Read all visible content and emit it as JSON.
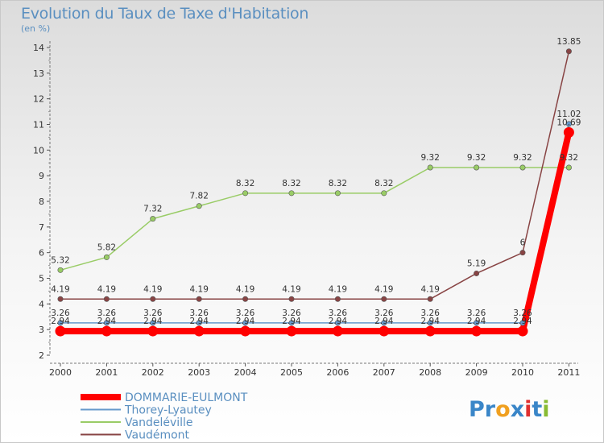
{
  "chart_data": {
    "type": "line",
    "title": "Evolution du Taux de Taxe d'Habitation",
    "unit_label": "(en %)",
    "x": [
      "2000",
      "2001",
      "2002",
      "2003",
      "2004",
      "2005",
      "2006",
      "2007",
      "2008",
      "2009",
      "2010",
      "2011"
    ],
    "ylim": [
      2,
      14
    ],
    "yticks": [
      "2",
      "3",
      "4",
      "5",
      "6",
      "7",
      "8",
      "9",
      "10",
      "11",
      "12",
      "13",
      "14"
    ],
    "series": [
      {
        "name": "DOMMARIE-EULMONT",
        "color": "#ff0000",
        "values": [
          2.94,
          2.94,
          2.94,
          2.94,
          2.94,
          2.94,
          2.94,
          2.94,
          2.94,
          2.94,
          2.94,
          10.69
        ],
        "labels": [
          "2.94",
          "2.94",
          "2.94",
          "2.94",
          "2.94",
          "2.94",
          "2.94",
          "2.94",
          "2.94",
          "2.94",
          "2.94",
          "10.69"
        ]
      },
      {
        "name": "Thorey-Lyautey",
        "color": "#6699cc",
        "values": [
          3.26,
          3.26,
          3.26,
          3.26,
          3.26,
          3.26,
          3.26,
          3.26,
          3.26,
          3.26,
          3.26,
          11.02
        ],
        "labels": [
          "3.26",
          "3.26",
          "3.26",
          "3.26",
          "3.26",
          "3.26",
          "3.26",
          "3.26",
          "3.26",
          "3.26",
          "3.26",
          "11.02"
        ]
      },
      {
        "name": "Vandeléville",
        "color": "#99cc66",
        "values": [
          5.32,
          5.82,
          7.32,
          7.82,
          8.32,
          8.32,
          8.32,
          8.32,
          9.32,
          9.32,
          9.32,
          9.32
        ],
        "labels": [
          "5.32",
          "5.82",
          "7.32",
          "7.82",
          "8.32",
          "8.32",
          "8.32",
          "8.32",
          "9.32",
          "9.32",
          "9.32",
          "9.32"
        ]
      },
      {
        "name": "Vaudémont",
        "color": "#884444",
        "values": [
          4.19,
          4.19,
          4.19,
          4.19,
          4.19,
          4.19,
          4.19,
          4.19,
          4.19,
          5.19,
          6,
          13.85
        ],
        "labels": [
          "4.19",
          "4.19",
          "4.19",
          "4.19",
          "4.19",
          "4.19",
          "4.19",
          "4.19",
          "4.19",
          "5.19",
          "6",
          "13.85"
        ]
      }
    ]
  },
  "brand": {
    "letters": [
      "P",
      "r",
      "o",
      "x",
      "i",
      "t",
      "i"
    ],
    "colors": [
      "#3a86c8",
      "#3a86c8",
      "#f0a020",
      "#3a86c8",
      "#e03030",
      "#3a86c8",
      "#88bb33"
    ]
  }
}
